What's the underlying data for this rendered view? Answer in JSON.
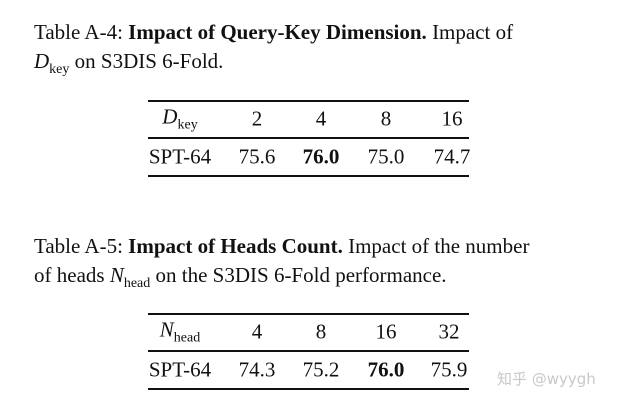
{
  "table_a4": {
    "caption": {
      "label": "Table A-4:",
      "title": "Impact of Query-Key Dimension.",
      "text": "Impact of",
      "symbol": "D",
      "subscript": "key",
      "tail": "on S3DIS 6-Fold."
    },
    "header": {
      "symbol": "D",
      "subscript": "key",
      "columns": [
        "2",
        "4",
        "8",
        "16"
      ]
    },
    "rows": [
      {
        "label": "SPT-64",
        "cells": [
          "75.6",
          "76.0",
          "75.0",
          "74.7"
        ]
      }
    ]
  },
  "table_a5": {
    "caption": {
      "label": "Table A-5:",
      "title": "Impact of Heads Count.",
      "text": "Impact of the number",
      "text2": "of heads",
      "symbol": "N",
      "subscript": "head",
      "tail": "on the S3DIS 6-Fold performance."
    },
    "header": {
      "symbol": "N",
      "subscript": "head",
      "columns": [
        "4",
        "8",
        "16",
        "32"
      ]
    },
    "rows": [
      {
        "label": "SPT-64",
        "cells": [
          "74.3",
          "75.2",
          "76.0",
          "75.9"
        ]
      }
    ]
  },
  "watermark": "知乎 @wyygh"
}
